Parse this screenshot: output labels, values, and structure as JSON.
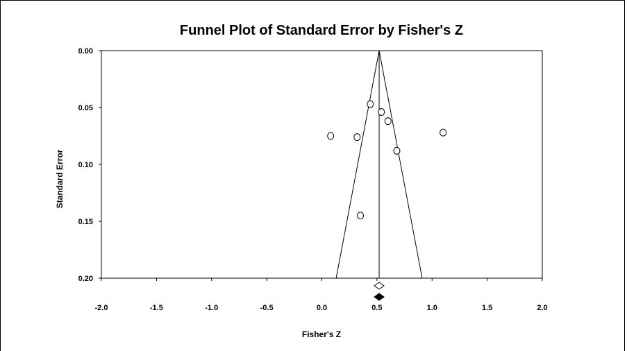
{
  "chart_data": {
    "type": "scatter",
    "title": "Funnel Plot of Standard Error by Fisher's Z",
    "xlabel": "Fisher's Z",
    "ylabel": "Standard Error",
    "xlim": [
      -2.0,
      2.0
    ],
    "ylim": [
      0.0,
      0.2
    ],
    "y_inverted": true,
    "x_ticks": [
      "-2.0",
      "-1.5",
      "-1.0",
      "-0.5",
      "0.0",
      "0.5",
      "1.0",
      "1.5",
      "2.0"
    ],
    "x_tick_values": [
      -2.0,
      -1.5,
      -1.0,
      -0.5,
      0.0,
      0.5,
      1.0,
      1.5,
      2.0
    ],
    "y_ticks": [
      "0.00",
      "0.05",
      "0.10",
      "0.15",
      "0.20"
    ],
    "y_tick_values": [
      0.0,
      0.05,
      0.1,
      0.15,
      0.2
    ],
    "points": [
      {
        "x": 0.08,
        "y": 0.075
      },
      {
        "x": 0.32,
        "y": 0.076
      },
      {
        "x": 0.44,
        "y": 0.047
      },
      {
        "x": 0.54,
        "y": 0.054
      },
      {
        "x": 0.6,
        "y": 0.062
      },
      {
        "x": 0.68,
        "y": 0.088
      },
      {
        "x": 1.1,
        "y": 0.072
      },
      {
        "x": 0.35,
        "y": 0.145
      }
    ],
    "pooled_estimate": 0.52,
    "funnel_apex": {
      "x": 0.52,
      "y": 0.0
    },
    "funnel_base": {
      "left_x": 0.13,
      "right_x": 0.91,
      "y": 0.2
    },
    "observed_summary": {
      "x": 0.52,
      "marker": "open-diamond"
    },
    "adjusted_summary": {
      "x": 0.52,
      "marker": "filled-diamond"
    },
    "grid": false,
    "legend": "none"
  }
}
